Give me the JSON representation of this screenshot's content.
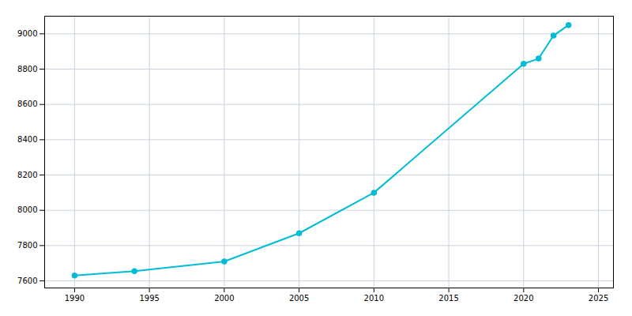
{
  "chart_data": {
    "type": "line",
    "x": [
      1990,
      1994,
      2000,
      2005,
      2010,
      2020,
      2021,
      2022,
      2023
    ],
    "values": [
      7630,
      7655,
      7710,
      7870,
      8100,
      8830,
      8860,
      8990,
      9050
    ],
    "color": "#00bcd4",
    "marker": "circle",
    "xlim": [
      1988,
      2026
    ],
    "ylim": [
      7560,
      9100
    ],
    "xticks": [
      1990,
      1995,
      2000,
      2005,
      2010,
      2015,
      2020,
      2025
    ],
    "yticks": [
      7600,
      7800,
      8000,
      8200,
      8400,
      8600,
      8800,
      9000
    ],
    "grid": true
  }
}
